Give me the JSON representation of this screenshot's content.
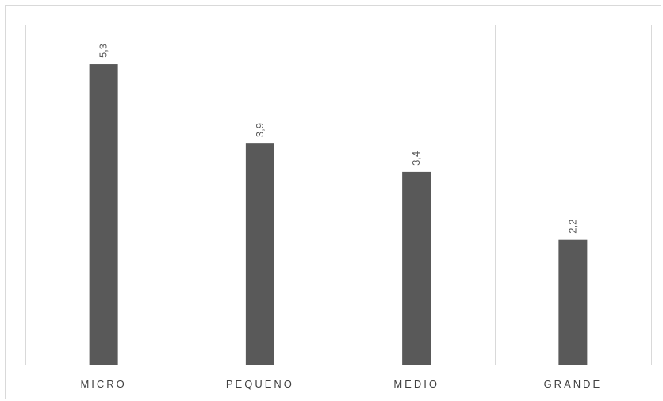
{
  "chart_data": {
    "type": "bar",
    "categories": [
      "MICRO",
      "PEQUENO",
      "MEDIO",
      "GRANDE"
    ],
    "values": [
      5.3,
      3.9,
      3.4,
      2.2
    ],
    "data_labels": [
      "5,3",
      "3,9",
      "3,4",
      "2,2"
    ],
    "title": "",
    "xlabel": "",
    "ylabel": "",
    "ylim": [
      0,
      6
    ],
    "grid": "vertical separators between categories",
    "legend": "none",
    "bar_color": "#595959",
    "grid_color": "#d9d9d9",
    "text_color": "#595959"
  }
}
